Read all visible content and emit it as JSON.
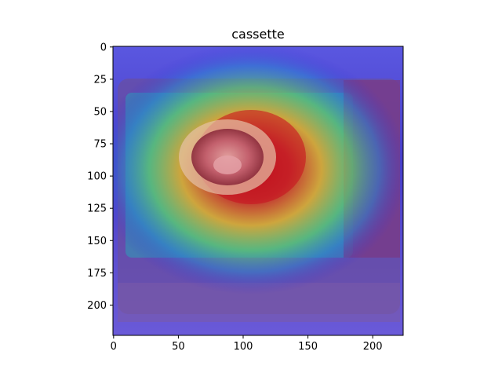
{
  "chart_data": {
    "type": "heatmap",
    "title": "cassette",
    "xlabel": "",
    "ylabel": "",
    "xlim": [
      0,
      224
    ],
    "ylim": [
      224,
      0
    ],
    "x_ticks": [
      0,
      50,
      100,
      150,
      200
    ],
    "y_ticks": [
      0,
      25,
      50,
      75,
      100,
      125,
      150,
      175,
      200
    ],
    "grid": false,
    "image_subject": "photo of a portable cassette gas stove with burner, overlaid by a Grad-CAM style jet-colormap heatmap",
    "colormap": "jet",
    "heatmap_peak": {
      "x": 110,
      "y": 90,
      "level": 1.0
    },
    "heatmap_regions": [
      {
        "label": "peak",
        "x": 120,
        "y": 95,
        "level": 1.0
      },
      {
        "label": "high",
        "x": 90,
        "y": 80,
        "level": 0.8
      },
      {
        "label": "medium",
        "x": 60,
        "y": 100,
        "level": 0.55
      },
      {
        "label": "low",
        "x": 30,
        "y": 130,
        "level": 0.35
      },
      {
        "label": "background",
        "x": 200,
        "y": 200,
        "level": 0.1
      }
    ]
  },
  "colors": {
    "background": "#ffffff",
    "axis": "#000000",
    "cold": "#3b2bd6",
    "cool": "#2d86c9",
    "mid": "#23c6a7",
    "warm": "#e6c21a",
    "hot": "#c8141a",
    "stove_body": "#5a4a7a",
    "burner_ring": "#e8c6b0"
  }
}
